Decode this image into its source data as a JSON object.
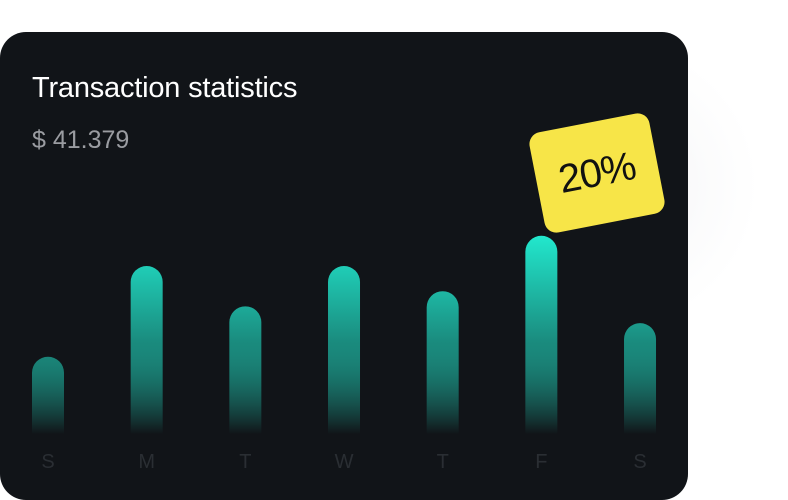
{
  "card": {
    "title": "Transaction statistics",
    "amount": "$ 41.379"
  },
  "badge": {
    "label": "20%",
    "color": "#f7e548"
  },
  "colors": {
    "card_background": "#111418",
    "bar_top": "#22ebd0",
    "bar_bottom": "#111418"
  },
  "chart_data": {
    "type": "bar",
    "categories": [
      "S",
      "M",
      "T",
      "W",
      "T",
      "F",
      "S"
    ],
    "values": [
      46,
      100,
      76,
      100,
      85,
      118,
      66
    ],
    "ylim": [
      0,
      125
    ],
    "grid": false,
    "legend": "none"
  }
}
